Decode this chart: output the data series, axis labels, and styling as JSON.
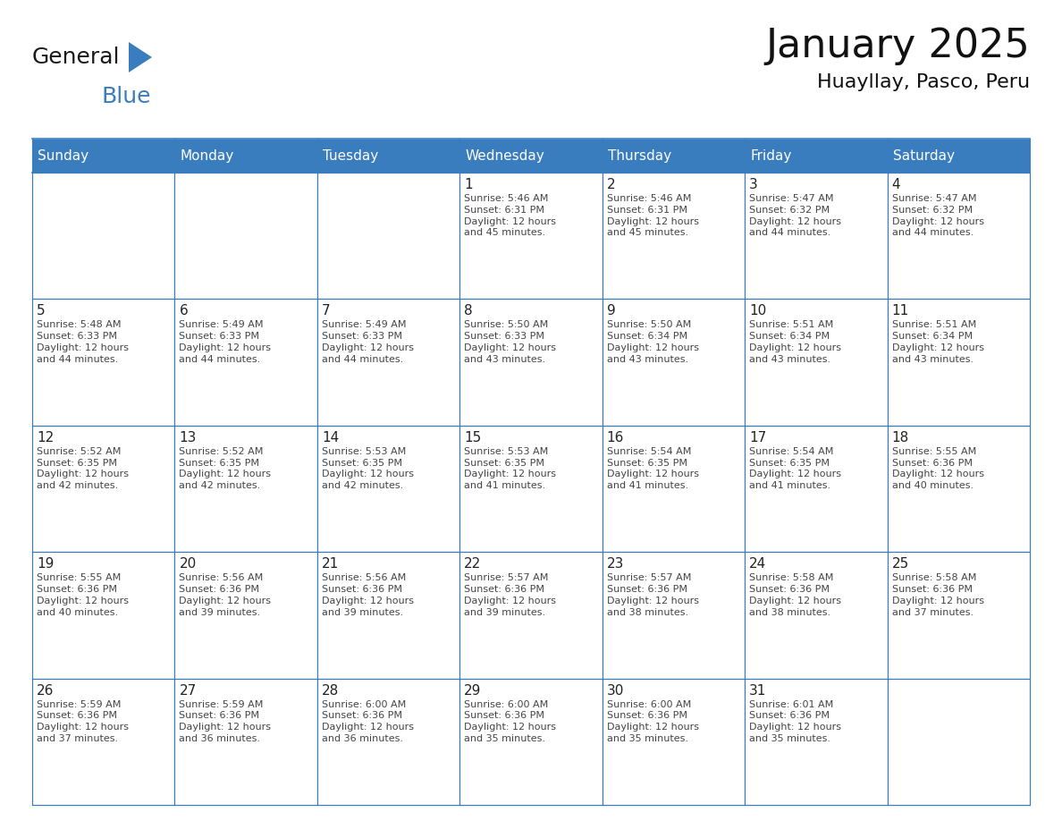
{
  "title": "January 2025",
  "subtitle": "Huayllay, Pasco, Peru",
  "header_bg": "#3a7dbf",
  "header_text_color": "#ffffff",
  "border_color": "#3a7dbf",
  "text_color": "#222222",
  "info_text_color": "#444444",
  "day_headers": [
    "Sunday",
    "Monday",
    "Tuesday",
    "Wednesday",
    "Thursday",
    "Friday",
    "Saturday"
  ],
  "weeks": [
    [
      {
        "day": "",
        "info": ""
      },
      {
        "day": "",
        "info": ""
      },
      {
        "day": "",
        "info": ""
      },
      {
        "day": "1",
        "info": "Sunrise: 5:46 AM\nSunset: 6:31 PM\nDaylight: 12 hours\nand 45 minutes."
      },
      {
        "day": "2",
        "info": "Sunrise: 5:46 AM\nSunset: 6:31 PM\nDaylight: 12 hours\nand 45 minutes."
      },
      {
        "day": "3",
        "info": "Sunrise: 5:47 AM\nSunset: 6:32 PM\nDaylight: 12 hours\nand 44 minutes."
      },
      {
        "day": "4",
        "info": "Sunrise: 5:47 AM\nSunset: 6:32 PM\nDaylight: 12 hours\nand 44 minutes."
      }
    ],
    [
      {
        "day": "5",
        "info": "Sunrise: 5:48 AM\nSunset: 6:33 PM\nDaylight: 12 hours\nand 44 minutes."
      },
      {
        "day": "6",
        "info": "Sunrise: 5:49 AM\nSunset: 6:33 PM\nDaylight: 12 hours\nand 44 minutes."
      },
      {
        "day": "7",
        "info": "Sunrise: 5:49 AM\nSunset: 6:33 PM\nDaylight: 12 hours\nand 44 minutes."
      },
      {
        "day": "8",
        "info": "Sunrise: 5:50 AM\nSunset: 6:33 PM\nDaylight: 12 hours\nand 43 minutes."
      },
      {
        "day": "9",
        "info": "Sunrise: 5:50 AM\nSunset: 6:34 PM\nDaylight: 12 hours\nand 43 minutes."
      },
      {
        "day": "10",
        "info": "Sunrise: 5:51 AM\nSunset: 6:34 PM\nDaylight: 12 hours\nand 43 minutes."
      },
      {
        "day": "11",
        "info": "Sunrise: 5:51 AM\nSunset: 6:34 PM\nDaylight: 12 hours\nand 43 minutes."
      }
    ],
    [
      {
        "day": "12",
        "info": "Sunrise: 5:52 AM\nSunset: 6:35 PM\nDaylight: 12 hours\nand 42 minutes."
      },
      {
        "day": "13",
        "info": "Sunrise: 5:52 AM\nSunset: 6:35 PM\nDaylight: 12 hours\nand 42 minutes."
      },
      {
        "day": "14",
        "info": "Sunrise: 5:53 AM\nSunset: 6:35 PM\nDaylight: 12 hours\nand 42 minutes."
      },
      {
        "day": "15",
        "info": "Sunrise: 5:53 AM\nSunset: 6:35 PM\nDaylight: 12 hours\nand 41 minutes."
      },
      {
        "day": "16",
        "info": "Sunrise: 5:54 AM\nSunset: 6:35 PM\nDaylight: 12 hours\nand 41 minutes."
      },
      {
        "day": "17",
        "info": "Sunrise: 5:54 AM\nSunset: 6:35 PM\nDaylight: 12 hours\nand 41 minutes."
      },
      {
        "day": "18",
        "info": "Sunrise: 5:55 AM\nSunset: 6:36 PM\nDaylight: 12 hours\nand 40 minutes."
      }
    ],
    [
      {
        "day": "19",
        "info": "Sunrise: 5:55 AM\nSunset: 6:36 PM\nDaylight: 12 hours\nand 40 minutes."
      },
      {
        "day": "20",
        "info": "Sunrise: 5:56 AM\nSunset: 6:36 PM\nDaylight: 12 hours\nand 39 minutes."
      },
      {
        "day": "21",
        "info": "Sunrise: 5:56 AM\nSunset: 6:36 PM\nDaylight: 12 hours\nand 39 minutes."
      },
      {
        "day": "22",
        "info": "Sunrise: 5:57 AM\nSunset: 6:36 PM\nDaylight: 12 hours\nand 39 minutes."
      },
      {
        "day": "23",
        "info": "Sunrise: 5:57 AM\nSunset: 6:36 PM\nDaylight: 12 hours\nand 38 minutes."
      },
      {
        "day": "24",
        "info": "Sunrise: 5:58 AM\nSunset: 6:36 PM\nDaylight: 12 hours\nand 38 minutes."
      },
      {
        "day": "25",
        "info": "Sunrise: 5:58 AM\nSunset: 6:36 PM\nDaylight: 12 hours\nand 37 minutes."
      }
    ],
    [
      {
        "day": "26",
        "info": "Sunrise: 5:59 AM\nSunset: 6:36 PM\nDaylight: 12 hours\nand 37 minutes."
      },
      {
        "day": "27",
        "info": "Sunrise: 5:59 AM\nSunset: 6:36 PM\nDaylight: 12 hours\nand 36 minutes."
      },
      {
        "day": "28",
        "info": "Sunrise: 6:00 AM\nSunset: 6:36 PM\nDaylight: 12 hours\nand 36 minutes."
      },
      {
        "day": "29",
        "info": "Sunrise: 6:00 AM\nSunset: 6:36 PM\nDaylight: 12 hours\nand 35 minutes."
      },
      {
        "day": "30",
        "info": "Sunrise: 6:00 AM\nSunset: 6:36 PM\nDaylight: 12 hours\nand 35 minutes."
      },
      {
        "day": "31",
        "info": "Sunrise: 6:01 AM\nSunset: 6:36 PM\nDaylight: 12 hours\nand 35 minutes."
      },
      {
        "day": "",
        "info": ""
      }
    ]
  ],
  "logo_general_color": "#1a1a1a",
  "logo_blue_color": "#3a7dbf",
  "logo_triangle_color": "#3a7dbf",
  "title_fontsize": 32,
  "subtitle_fontsize": 16,
  "header_fontsize": 11,
  "day_num_fontsize": 11,
  "info_fontsize": 8
}
